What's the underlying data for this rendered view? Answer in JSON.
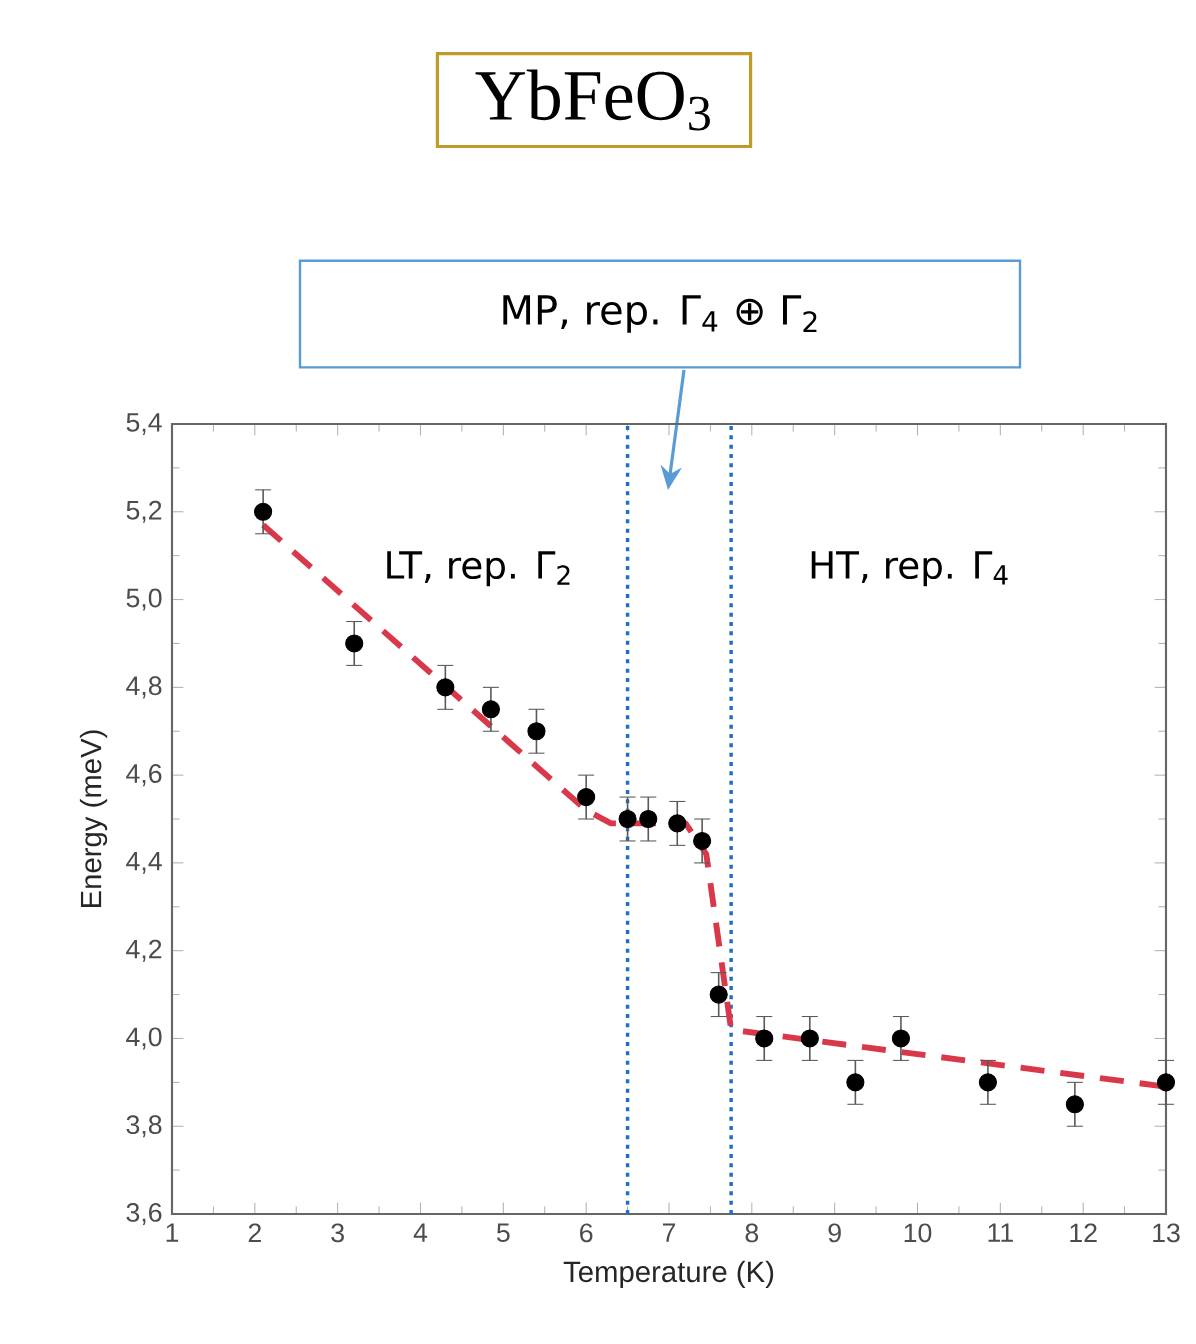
{
  "chart_data": {
    "type": "scatter",
    "title": "YbFeO$_{3}$",
    "xlabel": "Temperature (K)",
    "ylabel": "Energy (meV)",
    "annotations": [
      "MP, rep. Γ$_{4}$ ⊕ Γ$_{2}$",
      "LT, rep. Γ$_{2}$",
      "HT, rep.  Γ$_{4}$"
    ],
    "xlim": [
      1,
      13
    ],
    "xticks": [
      1,
      2,
      3,
      4,
      5,
      6,
      7,
      8,
      9,
      10,
      11,
      12,
      13
    ],
    "ylim": [
      3.6,
      5.4
    ],
    "yticks": [
      {
        "value": 3.6,
        "label": "3,6"
      },
      {
        "value": 3.8,
        "label": "3,8"
      },
      {
        "value": 4.0,
        "label": "4,0"
      },
      {
        "value": 4.2,
        "label": "4,2"
      },
      {
        "value": 4.4,
        "label": "4,4"
      },
      {
        "value": 4.6,
        "label": "4,6"
      },
      {
        "value": 4.8,
        "label": "4,8"
      },
      {
        "value": 5.0,
        "label": "5,0"
      },
      {
        "value": 5.2,
        "label": "5,2"
      },
      {
        "value": 5.4,
        "label": "5,4"
      }
    ],
    "series": [
      {
        "type": "line",
        "color": "#d9384a",
        "line_style": "dashed",
        "marker": "none",
        "x": [
          2.1,
          6.0,
          6.3,
          7.2,
          7.45,
          7.75,
          13.0
        ],
        "values": [
          5.17,
          4.52,
          4.49,
          4.49,
          4.42,
          4.02,
          3.89
        ]
      },
      {
        "color": "#000000",
        "marker": "circle",
        "x": [
          2.1,
          3.2,
          4.3,
          4.85,
          5.4,
          6.0,
          6.5,
          6.75,
          7.1,
          7.4,
          7.6,
          8.15,
          8.7,
          9.25,
          9.8,
          10.85,
          11.9,
          13.0
        ],
        "values": [
          5.2,
          4.9,
          4.8,
          4.75,
          4.7,
          4.55,
          4.5,
          4.5,
          4.49,
          4.45,
          4.1,
          4.0,
          4.0,
          3.9,
          4.0,
          3.9,
          3.85,
          3.9
        ],
        "errors": [
          0.05,
          0.05,
          0.05,
          0.05,
          0.05,
          0.05,
          0.05,
          0.05,
          0.05,
          0.05,
          0.05,
          0.05,
          0.05,
          0.05,
          0.05,
          0.05,
          0.05,
          0.05
        ]
      }
    ],
    "ref_lines": [
      {
        "axis": "x",
        "value": 6.5,
        "color": "#1f6fc4",
        "line_style": "dotted"
      },
      {
        "axis": "x",
        "value": 7.75,
        "color": "#1f6fc4",
        "line_style": "dotted"
      }
    ],
    "grid": false
  }
}
